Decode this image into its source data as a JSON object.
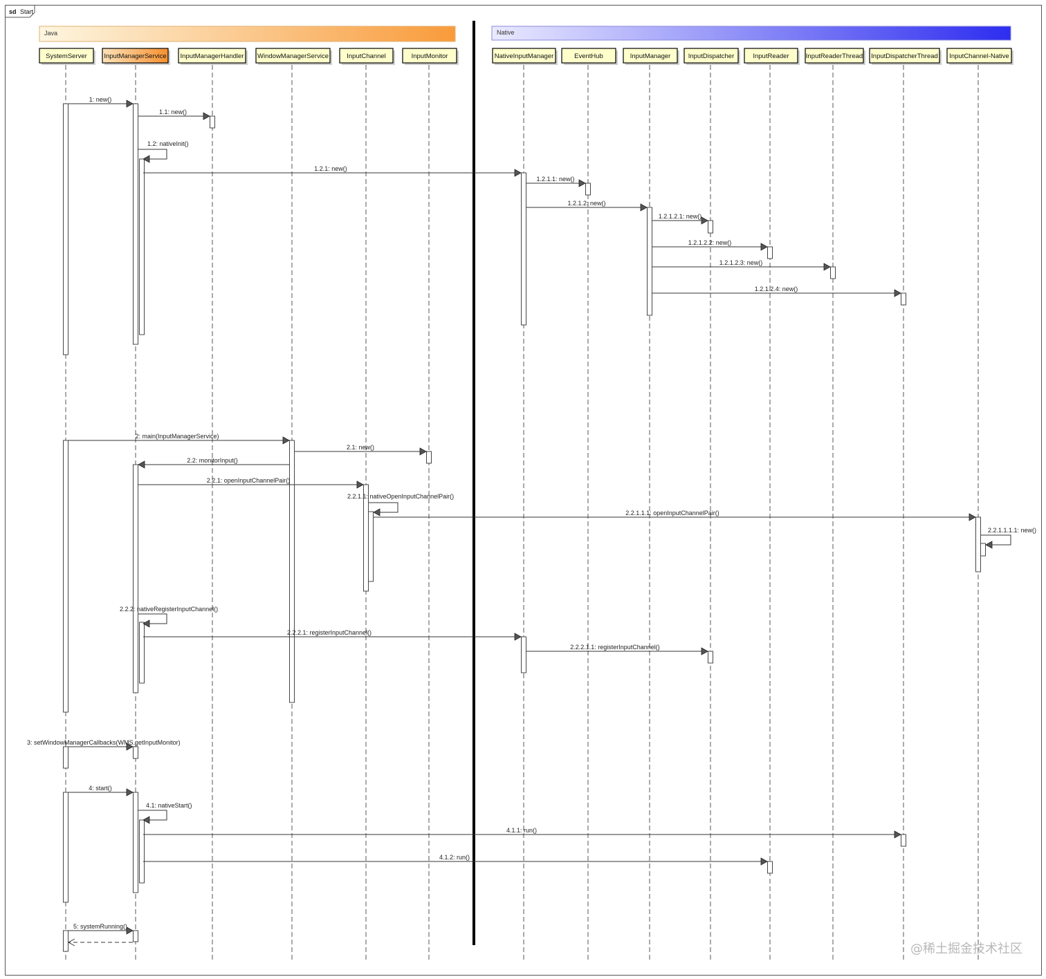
{
  "frame": {
    "keyword": "sd",
    "name": "Start"
  },
  "packages": [
    {
      "id": "java",
      "label": "Java",
      "color_from": "#fdf6e0",
      "color_to": "#f99b3b"
    },
    {
      "id": "native",
      "label": "Native",
      "color_from": "#eaeaff",
      "color_to": "#2d2df0"
    }
  ],
  "participants": [
    {
      "id": "ss",
      "label": "SystemServer",
      "highlight": false
    },
    {
      "id": "ims",
      "label": "InputManagerService",
      "highlight": true
    },
    {
      "id": "imh",
      "label": "InputManagerHandler",
      "highlight": false
    },
    {
      "id": "wms",
      "label": "WindowManagerService",
      "highlight": false
    },
    {
      "id": "ic",
      "label": "InputChannel",
      "highlight": false
    },
    {
      "id": "imon",
      "label": "InputMonitor",
      "highlight": false
    },
    {
      "id": "nim",
      "label": "NativeInputManager",
      "highlight": false
    },
    {
      "id": "eh",
      "label": "EventHub",
      "highlight": false
    },
    {
      "id": "im",
      "label": "InputManager",
      "highlight": false
    },
    {
      "id": "idsp",
      "label": "InputDispatcher",
      "highlight": false
    },
    {
      "id": "ir",
      "label": "InputReader",
      "highlight": false
    },
    {
      "id": "irt",
      "label": "InputReaderThread",
      "highlight": false
    },
    {
      "id": "idt",
      "label": "InputDispatcherThread",
      "highlight": false
    },
    {
      "id": "icn",
      "label": "InputChannel-Native",
      "highlight": false
    }
  ],
  "messages": [
    {
      "label": "1: new()",
      "from": "ss",
      "to": "ims",
      "kind": "call"
    },
    {
      "label": "1.1: new()",
      "from": "ims",
      "to": "imh",
      "kind": "call"
    },
    {
      "label": "1.2: nativeInit()",
      "from": "ims",
      "to": "ims",
      "kind": "self"
    },
    {
      "label": "1.2.1: new()",
      "from": "ims",
      "to": "nim",
      "kind": "call"
    },
    {
      "label": "1.2.1.1: new()",
      "from": "nim",
      "to": "eh",
      "kind": "call"
    },
    {
      "label": "1.2.1.2: new()",
      "from": "nim",
      "to": "im",
      "kind": "call"
    },
    {
      "label": "1.2.1.2.1: new()",
      "from": "im",
      "to": "idsp",
      "kind": "call"
    },
    {
      "label": "1.2.1.2.2: new()",
      "from": "im",
      "to": "ir",
      "kind": "call"
    },
    {
      "label": "1.2.1.2.3: new()",
      "from": "im",
      "to": "irt",
      "kind": "call"
    },
    {
      "label": "1.2.1.2.4: new()",
      "from": "im",
      "to": "idt",
      "kind": "call"
    },
    {
      "label": "2: main(InputManagerService)",
      "from": "ss",
      "to": "wms",
      "kind": "call"
    },
    {
      "label": "2.1: new()",
      "from": "wms",
      "to": "imon",
      "kind": "call"
    },
    {
      "label": "2.2: monitorInput()",
      "from": "wms",
      "to": "ims",
      "kind": "call"
    },
    {
      "label": "2.2.1: openInputChannelPair()",
      "from": "ims",
      "to": "ic",
      "kind": "call"
    },
    {
      "label": "2.2.1.1: nativeOpenInputChannelPair()",
      "from": "ic",
      "to": "ic",
      "kind": "self"
    },
    {
      "label": "2.2.1.1.1: openInputChannelPair()",
      "from": "ic",
      "to": "icn",
      "kind": "call"
    },
    {
      "label": "2.2.1.1.1.1: new()",
      "from": "icn",
      "to": "icn",
      "kind": "self"
    },
    {
      "label": "2.2.2: nativeRegisterInputChannel()",
      "from": "ims",
      "to": "ims",
      "kind": "self"
    },
    {
      "label": "2.2.2.1: registerInputChannel()",
      "from": "ims",
      "to": "nim",
      "kind": "call"
    },
    {
      "label": "2.2.2.1.1: registerInputChannel()",
      "from": "nim",
      "to": "idsp",
      "kind": "call"
    },
    {
      "label": "3: setWindowManagerCallbacks(WMS.getInputMonitor)",
      "from": "ss",
      "to": "ims",
      "kind": "call"
    },
    {
      "label": "4: start()",
      "from": "ss",
      "to": "ims",
      "kind": "call"
    },
    {
      "label": "4.1: nativeStart()",
      "from": "ims",
      "to": "ims",
      "kind": "self"
    },
    {
      "label": "4.1.1: run()",
      "from": "ims",
      "to": "idt",
      "kind": "call"
    },
    {
      "label": "4.1.2: run()",
      "from": "ims",
      "to": "ir",
      "kind": "call"
    },
    {
      "label": "5: systemRunning()",
      "from": "ss",
      "to": "ims",
      "kind": "call"
    },
    {
      "label": "",
      "from": "ims",
      "to": "ss",
      "kind": "return"
    }
  ],
  "watermark": "@稀土掘金技术社区"
}
